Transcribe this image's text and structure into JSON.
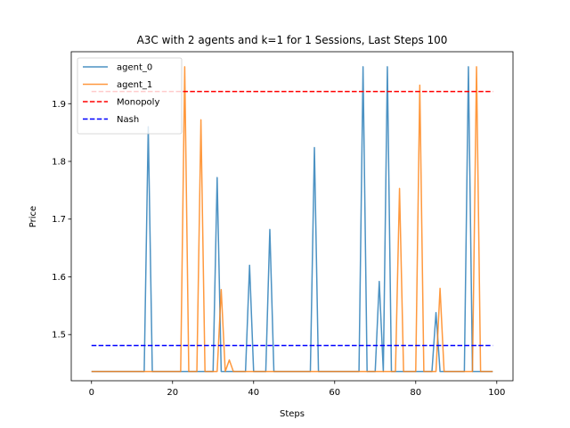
{
  "chart_data": {
    "type": "line",
    "title": "A3C with 2 agents and k=1 for 1 Sessions, Last Steps 100",
    "xlabel": "Steps",
    "ylabel": "Price",
    "xlim": [
      -5,
      104
    ],
    "ylim": [
      1.42,
      1.99
    ],
    "xticks": [
      0,
      20,
      40,
      60,
      80,
      100
    ],
    "yticks": [
      1.5,
      1.6,
      1.7,
      1.8,
      1.9
    ],
    "grid": false,
    "legend_position": "top-left",
    "series": [
      {
        "name": "agent_0",
        "color": "#1f77b4",
        "x": [
          0,
          13,
          14,
          15,
          30,
          31,
          32,
          38,
          39,
          40,
          43,
          44,
          45,
          54,
          55,
          56,
          66,
          67,
          68,
          70,
          71,
          72,
          73,
          74,
          84,
          85,
          86,
          92,
          93,
          94,
          99
        ],
        "y": [
          1.436,
          1.436,
          1.86,
          1.436,
          1.436,
          1.772,
          1.436,
          1.436,
          1.62,
          1.436,
          1.436,
          1.682,
          1.436,
          1.436,
          1.824,
          1.436,
          1.436,
          1.964,
          1.436,
          1.436,
          1.592,
          1.436,
          1.964,
          1.436,
          1.436,
          1.538,
          1.436,
          1.436,
          1.964,
          1.436,
          1.436
        ]
      },
      {
        "name": "agent_1",
        "color": "#ff7f0e",
        "x": [
          0,
          22,
          23,
          24,
          26,
          27,
          28,
          31,
          32,
          33,
          34,
          35,
          75,
          76,
          77,
          80,
          81,
          82,
          85,
          86,
          87,
          94,
          95,
          96,
          99
        ],
        "y": [
          1.436,
          1.436,
          1.964,
          1.436,
          1.436,
          1.872,
          1.436,
          1.436,
          1.578,
          1.436,
          1.456,
          1.436,
          1.436,
          1.753,
          1.436,
          1.436,
          1.932,
          1.436,
          1.436,
          1.58,
          1.436,
          1.436,
          1.964,
          1.436,
          1.436
        ]
      },
      {
        "name": "Monopoly",
        "color": "#ff0000",
        "dashed": true,
        "x": [
          0,
          99
        ],
        "y": [
          1.921,
          1.921
        ]
      },
      {
        "name": "Nash",
        "color": "#0000ff",
        "dashed": true,
        "x": [
          0,
          99
        ],
        "y": [
          1.481,
          1.481
        ]
      }
    ]
  }
}
